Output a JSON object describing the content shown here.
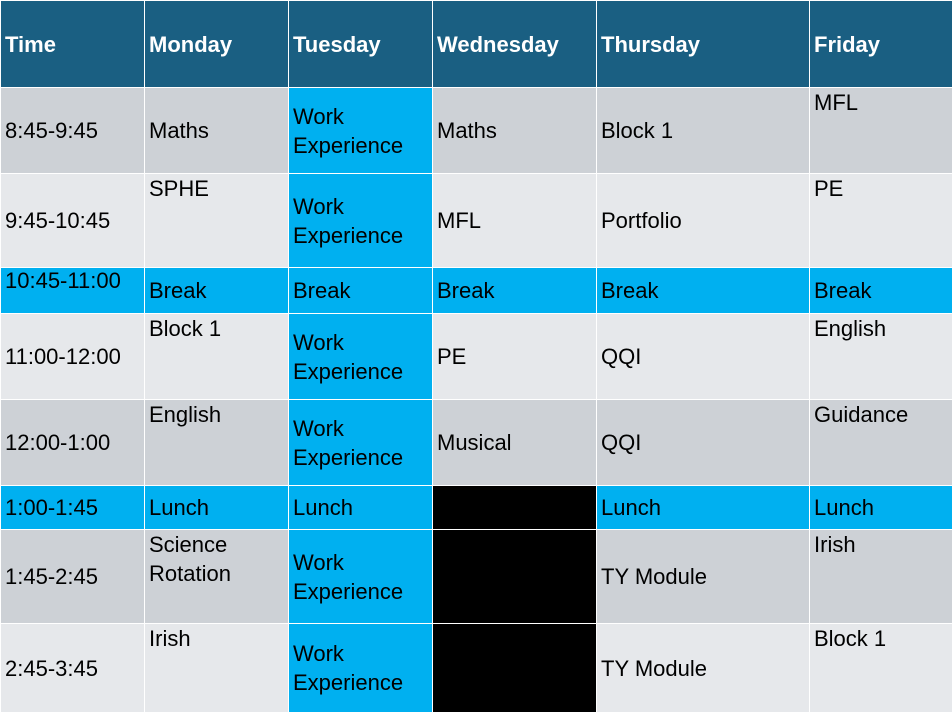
{
  "headers": [
    "Time",
    "Monday",
    "Tuesday",
    "Wednesday",
    "Thursday",
    "Friday"
  ],
  "rows": [
    {
      "time": "8:45-9:45",
      "monday": "Maths",
      "tuesday": "Work Experience",
      "wednesday": "Maths",
      "thursday": "Block 1",
      "friday": "MFL"
    },
    {
      "time": "9:45-10:45",
      "monday": "SPHE",
      "tuesday": "Work Experience",
      "wednesday": "MFL",
      "thursday": "Portfolio",
      "friday": "PE"
    },
    {
      "time": "10:45-11:00",
      "monday": "Break",
      "tuesday": "Break",
      "wednesday": "Break",
      "thursday": "Break",
      "friday": "Break"
    },
    {
      "time": "11:00-12:00",
      "monday": "Block 1",
      "tuesday": "Work Experience",
      "wednesday": "PE",
      "thursday": "QQI",
      "friday": "English"
    },
    {
      "time": "12:00-1:00",
      "monday": "English",
      "tuesday": "Work Experience",
      "wednesday": "Musical",
      "thursday": "QQI",
      "friday": "Guidance"
    },
    {
      "time": "1:00-1:45",
      "monday": "Lunch",
      "tuesday": "Lunch",
      "wednesday": "",
      "thursday": "Lunch",
      "friday": "Lunch"
    },
    {
      "time": "1:45-2:45",
      "monday": "Science Rotation",
      "tuesday": "Work Experience",
      "wednesday": "",
      "thursday": "TY Module",
      "friday": "Irish"
    },
    {
      "time": "2:45-3:45",
      "monday": "Irish",
      "tuesday": "Work Experience",
      "wednesday": "",
      "thursday": "TY Module",
      "friday": "Block 1"
    }
  ],
  "colors": {
    "header": "#1a5f82",
    "row_dark": "#cdd1d6",
    "row_light": "#e6e8eb",
    "highlight": "#00b0f0",
    "blackout": "#000000"
  }
}
